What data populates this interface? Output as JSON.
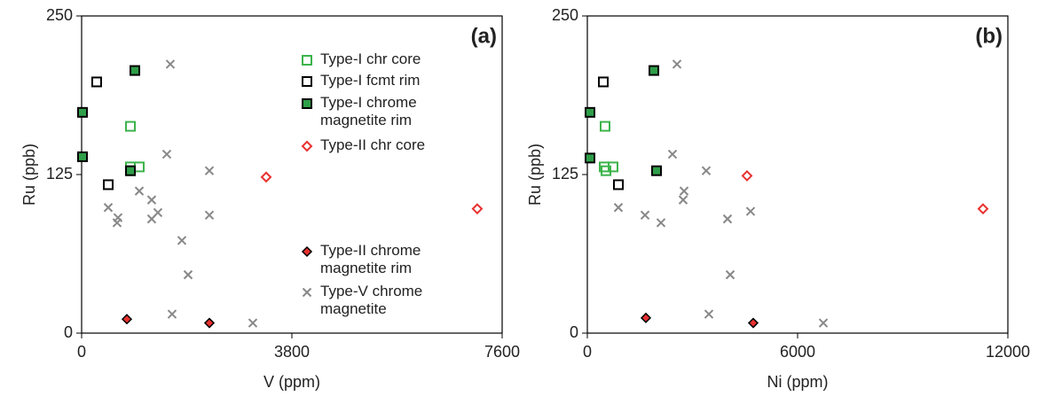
{
  "chart_data": [
    {
      "type": "scatter",
      "panel_label": "(a)",
      "xlabel": "V (ppm)",
      "ylabel": "Ru (ppb)",
      "xlim": [
        0,
        7600
      ],
      "ylim": [
        0,
        250
      ],
      "xticks": [
        0,
        3800,
        7600
      ],
      "yticks": [
        0,
        125,
        250
      ],
      "legend": "upper right",
      "series": [
        {
          "name": "Type-I chr core",
          "color": "#3cb44b",
          "marker": "square-open",
          "x": [
            882,
            882,
            882,
            1042
          ],
          "values": [
            163,
            131,
            128,
            131
          ]
        },
        {
          "name": "Type-I fcmt rim",
          "color": "#000000",
          "marker": "square-open",
          "x": [
            272,
            481
          ],
          "values": [
            198,
            117
          ]
        },
        {
          "name": "Type-I chrome magnetite rim",
          "color": "#2e9e48",
          "edgecolor": "#000000",
          "marker": "square-filled",
          "x": [
            16,
            16,
            962,
            882
          ],
          "values": [
            174,
            139,
            207,
            128
          ]
        },
        {
          "name": "Type-II chr core",
          "color": "#e8312f",
          "marker": "diamond-open",
          "x": [
            3335,
            7150
          ],
          "values": [
            123,
            98
          ]
        },
        {
          "name": "Type-II chrome magnetite rim",
          "color": "#e8312f",
          "edgecolor": "#000000",
          "marker": "diamond-filled",
          "x": [
            818,
            2309
          ],
          "values": [
            11,
            8
          ]
        },
        {
          "name": "Type-V chrome magnetite",
          "color": "#888888",
          "marker": "x",
          "x": [
            1603,
            1539,
            2309,
            1042,
            1266,
            481,
            657,
            641,
            1378,
            1266,
            2309,
            1812,
            1924,
            1635,
            3094
          ],
          "values": [
            212,
            141,
            128,
            112,
            105,
            99,
            91,
            87,
            95,
            90,
            93,
            73,
            46,
            15,
            8
          ]
        }
      ]
    },
    {
      "type": "scatter",
      "panel_label": "(b)",
      "xlabel": "Ni (ppm)",
      "ylabel": "Ru (ppb)",
      "xlim": [
        0,
        12000
      ],
      "ylim": [
        0,
        250
      ],
      "xticks": [
        0,
        6000,
        12000
      ],
      "yticks": [
        0,
        125,
        250
      ],
      "series": [
        {
          "color": "#3cb44b",
          "marker": "square-open",
          "x": [
            506,
            481,
            532,
            734
          ],
          "values": [
            163,
            131,
            128,
            131
          ]
        },
        {
          "color": "#000000",
          "marker": "square-open",
          "x": [
            456,
            886
          ],
          "values": [
            198,
            117
          ]
        },
        {
          "color": "#2e9e48",
          "edgecolor": "#000000",
          "marker": "square-filled",
          "x": [
            76,
            76,
            1899,
            1975
          ],
          "values": [
            174,
            138,
            207,
            128
          ]
        },
        {
          "color": "#e8312f",
          "marker": "diamond-open",
          "x": [
            4557,
            11291
          ],
          "values": [
            124,
            98
          ]
        },
        {
          "color": "#e8312f",
          "edgecolor": "#000000",
          "marker": "diamond-filled",
          "x": [
            1671,
            4734
          ],
          "values": [
            12,
            8
          ]
        },
        {
          "color": "#888888",
          "marker": "x",
          "x": [
            2557,
            2430,
            3392,
            2760,
            2734,
            886,
            1646,
            2101,
            4658,
            4000,
            4076,
            3468,
            6734
          ],
          "values": [
            212,
            141,
            128,
            112,
            105,
            99,
            93,
            87,
            96,
            90,
            46,
            15,
            8
          ]
        }
      ]
    }
  ]
}
